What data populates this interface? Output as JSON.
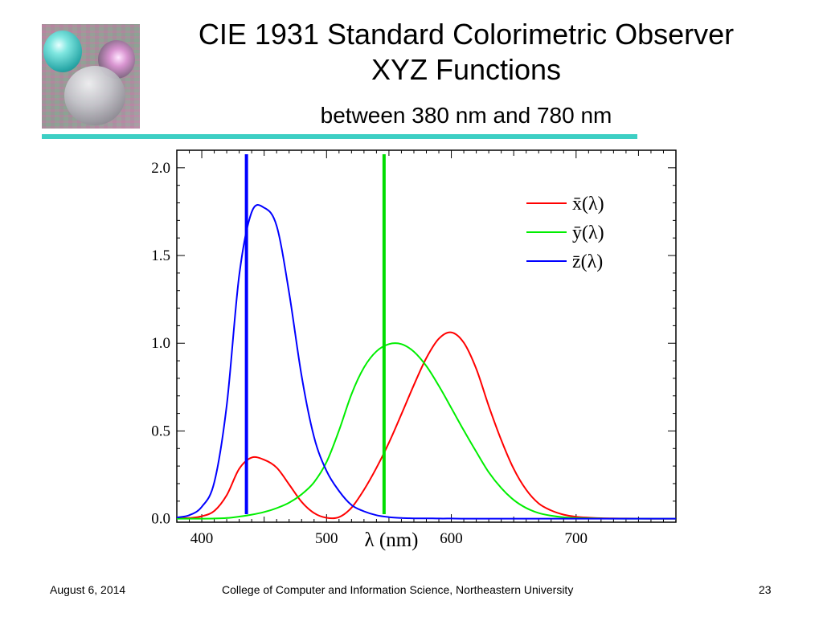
{
  "slide": {
    "title_line_1": "CIE 1931 Standard Colorimetric Observer",
    "title_line_2": "XYZ Functions",
    "subtitle": "between 380 nm and 780 nm",
    "accent_color": "#3dcfc4"
  },
  "footer": {
    "date": "August 6, 2014",
    "organization": "College of Computer and Information Science, Northeastern University",
    "page_number": "23"
  },
  "chart_data": {
    "type": "line",
    "xlabel": "λ (nm)",
    "ylabel": "",
    "xlim": [
      380,
      780
    ],
    "ylim": [
      -0.02,
      2.1
    ],
    "x_ticks": [
      400,
      500,
      600,
      700
    ],
    "x_tick_labels": [
      "400",
      "500",
      "600",
      "700"
    ],
    "y_ticks": [
      0.0,
      0.5,
      1.0,
      1.5,
      2.0
    ],
    "y_tick_labels": [
      "0.0",
      "0.5",
      "1.0",
      "1.5",
      "2.0"
    ],
    "grid": false,
    "legend_position": "top-right",
    "x": [
      380,
      390,
      400,
      410,
      420,
      430,
      440,
      450,
      460,
      470,
      480,
      490,
      500,
      510,
      520,
      530,
      540,
      550,
      560,
      570,
      580,
      590,
      600,
      610,
      620,
      630,
      640,
      650,
      660,
      670,
      680,
      690,
      700,
      720,
      740,
      760,
      780
    ],
    "series": [
      {
        "name": "x̄(λ)",
        "color": "#ff0000",
        "values": [
          0.001,
          0.004,
          0.014,
          0.044,
          0.134,
          0.284,
          0.348,
          0.336,
          0.291,
          0.195,
          0.096,
          0.032,
          0.005,
          0.009,
          0.063,
          0.165,
          0.29,
          0.433,
          0.595,
          0.762,
          0.916,
          1.026,
          1.062,
          1.003,
          0.854,
          0.642,
          0.448,
          0.284,
          0.165,
          0.087,
          0.047,
          0.023,
          0.011,
          0.003,
          0.001,
          0.0,
          0.0
        ]
      },
      {
        "name": "ȳ(λ)",
        "color": "#00ee00",
        "values": [
          0.0,
          0.0,
          0.0,
          0.001,
          0.004,
          0.012,
          0.023,
          0.038,
          0.06,
          0.091,
          0.139,
          0.208,
          0.323,
          0.503,
          0.71,
          0.862,
          0.954,
          0.995,
          0.995,
          0.952,
          0.87,
          0.757,
          0.631,
          0.503,
          0.381,
          0.265,
          0.175,
          0.107,
          0.061,
          0.032,
          0.017,
          0.008,
          0.004,
          0.001,
          0.0,
          0.0,
          0.0
        ]
      },
      {
        "name": "z̄(λ)",
        "color": "#0000ff",
        "values": [
          0.007,
          0.02,
          0.068,
          0.207,
          0.646,
          1.386,
          1.747,
          1.772,
          1.669,
          1.288,
          0.813,
          0.465,
          0.272,
          0.158,
          0.078,
          0.042,
          0.02,
          0.009,
          0.004,
          0.002,
          0.002,
          0.001,
          0.001,
          0.0,
          0.0,
          0.0,
          0.0,
          0.0,
          0.0,
          0.0,
          0.0,
          0.0,
          0.0,
          0.0,
          0.0,
          0.0,
          0.0
        ]
      }
    ],
    "marker_lines": [
      {
        "x": 435.8,
        "color": "#0000ff"
      },
      {
        "x": 546.1,
        "color": "#00dd00"
      }
    ]
  }
}
